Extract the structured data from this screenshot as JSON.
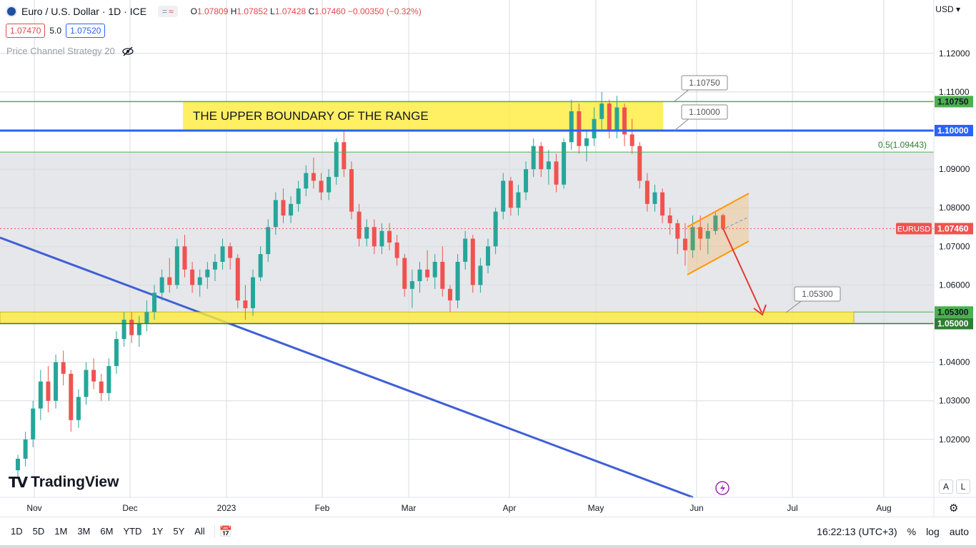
{
  "header": {
    "symbol_title": "Euro / U.S. Dollar · 1D · ICE",
    "pill_left": "=",
    "pill_right": "≈",
    "o_label": "O",
    "o_value": "1.07809",
    "h_label": "H",
    "h_value": "1.07852",
    "l_label": "L",
    "l_value": "1.07428",
    "c_label": "C",
    "c_value": "1.07460",
    "change": "−0.00350 (−0.32%)"
  },
  "quotes": {
    "sell": "1.07470",
    "spread": "5.0",
    "buy": "1.07520"
  },
  "indicator": {
    "name": "Price Channel Strategy 20",
    "icon": "eye-off-icon"
  },
  "currency_menu": "USD",
  "logo": {
    "mark": "TV",
    "name": "TradingView"
  },
  "bottom_bar": {
    "periods": [
      "1D",
      "5D",
      "1M",
      "3M",
      "6M",
      "YTD",
      "1Y",
      "5Y",
      "All"
    ],
    "time": "16:22:13 (UTC+3)",
    "percent": "%",
    "log": "log",
    "auto": "auto"
  },
  "scale_buttons": {
    "a": "A",
    "l": "L"
  },
  "colors": {
    "up": "#26a69a",
    "down": "#ef5350",
    "highlight": "#ffeb3b",
    "support_line": "#4caf50",
    "blue_line": "#2962ff",
    "trendline": "#3f5fd8",
    "channel": "#ff9800",
    "arrow": "#e53935",
    "plot_bg": "#e6e7ea"
  },
  "chart_data": {
    "type": "candlestick",
    "y_ticks": [
      "1.12000",
      "1.11000",
      "1.10000",
      "1.09000",
      "1.08000",
      "1.07000",
      "1.06000",
      "1.05000",
      "1.04000",
      "1.03000",
      "1.02000"
    ],
    "x_ticks": [
      "Nov",
      "Dec",
      "2023",
      "Feb",
      "Mar",
      "Apr",
      "May",
      "Jun",
      "Jul",
      "Aug"
    ],
    "ylim": [
      1.01,
      1.1275
    ],
    "last_price": 1.0746,
    "last_price_label": "EURUSD",
    "levels": [
      {
        "price": 1.1075,
        "label": "1.10750"
      },
      {
        "price": 1.1,
        "label": "1.10000"
      },
      {
        "price": 1.09443,
        "label": "0.5(1.09443)"
      },
      {
        "price": 1.053,
        "label": "1.05300"
      },
      {
        "price": 1.05,
        "label": "1.05000"
      }
    ],
    "annotation": "THE UPPER BOUNDARY OF THE RANGE",
    "callouts": [
      "1.10750",
      "1.10000",
      "1.05300"
    ],
    "candles": [
      [
        1.012,
        1.016,
        1.01,
        1.015
      ],
      [
        1.015,
        1.022,
        1.013,
        1.02
      ],
      [
        1.02,
        1.03,
        1.018,
        1.028
      ],
      [
        1.028,
        1.038,
        1.025,
        1.035
      ],
      [
        1.035,
        1.039,
        1.027,
        1.03
      ],
      [
        1.03,
        1.042,
        1.028,
        1.04
      ],
      [
        1.04,
        1.043,
        1.034,
        1.037
      ],
      [
        1.037,
        1.038,
        1.022,
        1.025
      ],
      [
        1.025,
        1.033,
        1.023,
        1.031
      ],
      [
        1.031,
        1.04,
        1.029,
        1.038
      ],
      [
        1.038,
        1.041,
        1.033,
        1.035
      ],
      [
        1.035,
        1.037,
        1.03,
        1.032
      ],
      [
        1.032,
        1.041,
        1.03,
        1.039
      ],
      [
        1.039,
        1.048,
        1.037,
        1.046
      ],
      [
        1.046,
        1.053,
        1.044,
        1.051
      ],
      [
        1.051,
        1.053,
        1.045,
        1.047
      ],
      [
        1.047,
        1.052,
        1.044,
        1.05
      ],
      [
        1.05,
        1.056,
        1.048,
        1.053
      ],
      [
        1.053,
        1.06,
        1.051,
        1.058
      ],
      [
        1.058,
        1.064,
        1.056,
        1.062
      ],
      [
        1.062,
        1.067,
        1.058,
        1.06
      ],
      [
        1.06,
        1.072,
        1.059,
        1.07
      ],
      [
        1.07,
        1.073,
        1.062,
        1.064
      ],
      [
        1.064,
        1.066,
        1.058,
        1.06
      ],
      [
        1.06,
        1.064,
        1.057,
        1.062
      ],
      [
        1.062,
        1.066,
        1.059,
        1.064
      ],
      [
        1.064,
        1.068,
        1.061,
        1.066
      ],
      [
        1.066,
        1.072,
        1.064,
        1.07
      ],
      [
        1.07,
        1.071,
        1.064,
        1.067
      ],
      [
        1.067,
        1.068,
        1.054,
        1.056
      ],
      [
        1.056,
        1.06,
        1.051,
        1.054
      ],
      [
        1.054,
        1.064,
        1.052,
        1.062
      ],
      [
        1.062,
        1.07,
        1.061,
        1.068
      ],
      [
        1.068,
        1.077,
        1.066,
        1.075
      ],
      [
        1.075,
        1.084,
        1.073,
        1.082
      ],
      [
        1.082,
        1.085,
        1.076,
        1.078
      ],
      [
        1.078,
        1.083,
        1.076,
        1.081
      ],
      [
        1.081,
        1.087,
        1.079,
        1.085
      ],
      [
        1.085,
        1.091,
        1.083,
        1.089
      ],
      [
        1.089,
        1.093,
        1.085,
        1.087
      ],
      [
        1.087,
        1.089,
        1.082,
        1.084
      ],
      [
        1.084,
        1.09,
        1.082,
        1.088
      ],
      [
        1.088,
        1.098,
        1.086,
        1.097
      ],
      [
        1.097,
        1.1,
        1.088,
        1.09
      ],
      [
        1.09,
        1.092,
        1.077,
        1.079
      ],
      [
        1.079,
        1.081,
        1.07,
        1.072
      ],
      [
        1.072,
        1.077,
        1.07,
        1.075
      ],
      [
        1.075,
        1.077,
        1.068,
        1.07
      ],
      [
        1.07,
        1.076,
        1.068,
        1.074
      ],
      [
        1.074,
        1.076,
        1.069,
        1.071
      ],
      [
        1.071,
        1.073,
        1.065,
        1.067
      ],
      [
        1.067,
        1.068,
        1.057,
        1.059
      ],
      [
        1.059,
        1.064,
        1.054,
        1.061
      ],
      [
        1.061,
        1.066,
        1.058,
        1.064
      ],
      [
        1.064,
        1.069,
        1.061,
        1.062
      ],
      [
        1.062,
        1.068,
        1.059,
        1.066
      ],
      [
        1.066,
        1.07,
        1.057,
        1.059
      ],
      [
        1.059,
        1.06,
        1.053,
        1.056
      ],
      [
        1.056,
        1.068,
        1.054,
        1.066
      ],
      [
        1.066,
        1.074,
        1.064,
        1.072
      ],
      [
        1.072,
        1.073,
        1.058,
        1.06
      ],
      [
        1.06,
        1.067,
        1.058,
        1.065
      ],
      [
        1.065,
        1.072,
        1.063,
        1.07
      ],
      [
        1.07,
        1.08,
        1.068,
        1.079
      ],
      [
        1.079,
        1.089,
        1.077,
        1.087
      ],
      [
        1.087,
        1.088,
        1.078,
        1.08
      ],
      [
        1.08,
        1.086,
        1.078,
        1.084
      ],
      [
        1.084,
        1.092,
        1.082,
        1.09
      ],
      [
        1.09,
        1.098,
        1.088,
        1.096
      ],
      [
        1.096,
        1.097,
        1.088,
        1.09
      ],
      [
        1.09,
        1.095,
        1.086,
        1.092
      ],
      [
        1.092,
        1.094,
        1.084,
        1.086
      ],
      [
        1.086,
        1.098,
        1.085,
        1.097
      ],
      [
        1.097,
        1.108,
        1.095,
        1.105
      ],
      [
        1.105,
        1.107,
        1.094,
        1.096
      ],
      [
        1.096,
        1.1,
        1.092,
        1.098
      ],
      [
        1.098,
        1.106,
        1.096,
        1.103
      ],
      [
        1.103,
        1.11,
        1.1,
        1.107
      ],
      [
        1.107,
        1.108,
        1.098,
        1.1
      ],
      [
        1.1,
        1.109,
        1.098,
        1.106
      ],
      [
        1.106,
        1.107,
        1.096,
        1.099
      ],
      [
        1.099,
        1.103,
        1.094,
        1.096
      ],
      [
        1.096,
        1.097,
        1.085,
        1.087
      ],
      [
        1.087,
        1.089,
        1.079,
        1.081
      ],
      [
        1.081,
        1.086,
        1.079,
        1.084
      ],
      [
        1.084,
        1.085,
        1.076,
        1.078
      ],
      [
        1.078,
        1.08,
        1.073,
        1.076
      ],
      [
        1.076,
        1.077,
        1.068,
        1.072
      ],
      [
        1.072,
        1.076,
        1.065,
        1.069
      ],
      [
        1.069,
        1.078,
        1.067,
        1.075
      ],
      [
        1.075,
        1.078,
        1.069,
        1.072
      ],
      [
        1.072,
        1.076,
        1.068,
        1.074
      ],
      [
        1.074,
        1.079,
        1.073,
        1.078
      ],
      [
        1.0781,
        1.0785,
        1.0743,
        1.0746
      ]
    ]
  }
}
